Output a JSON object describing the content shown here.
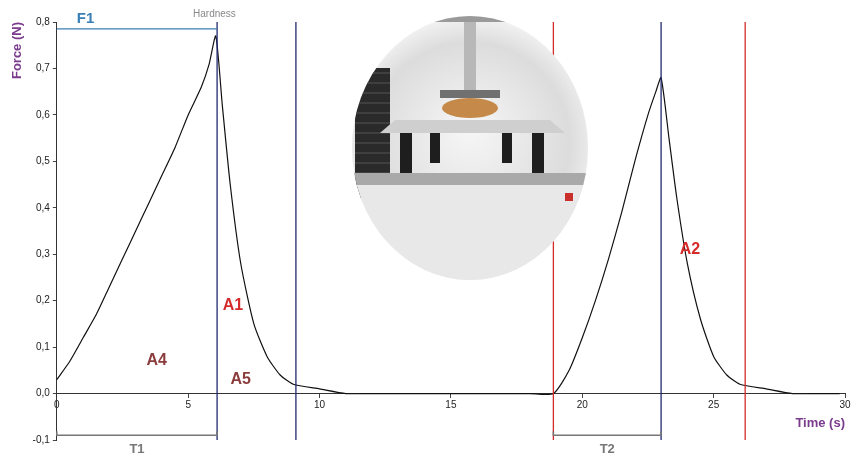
{
  "chart_data": {
    "type": "line",
    "x_label": "Time (s)",
    "y_label": "Force (N)",
    "xlim": [
      0,
      30
    ],
    "xticks": [
      0,
      5,
      10,
      15,
      20,
      25,
      30
    ],
    "ylim": [
      -0.1,
      0.8
    ],
    "yticks": [
      {
        "value": -0.1,
        "label": "-0,1"
      },
      {
        "value": 0,
        "label": "0,0"
      },
      {
        "value": 0.1,
        "label": "0,1"
      },
      {
        "value": 0.2,
        "label": "0,2"
      },
      {
        "value": 0.3,
        "label": "0,3"
      },
      {
        "value": 0.4,
        "label": "0,4"
      },
      {
        "value": 0.5,
        "label": "0,5"
      },
      {
        "value": 0.6,
        "label": "0,6"
      },
      {
        "value": 0.7,
        "label": "0,7"
      },
      {
        "value": 0.8,
        "label": "0,8"
      }
    ],
    "grid": false,
    "color": "#111111",
    "x": [
      0,
      0.5,
      1,
      1.5,
      2,
      2.5,
      3,
      3.5,
      4,
      4.5,
      5,
      5.5,
      5.8,
      6.05,
      6.3,
      6.6,
      7,
      7.5,
      8,
      8.5,
      9,
      10,
      11,
      12,
      13,
      14,
      15,
      16,
      17,
      18,
      18.9,
      19.5,
      20,
      20.5,
      21,
      21.5,
      22,
      22.5,
      22.8,
      23,
      23.3,
      23.6,
      24,
      24.5,
      25,
      25.5,
      26,
      27,
      28,
      29,
      29.8
    ],
    "values": [
      0.03,
      0.07,
      0.12,
      0.17,
      0.23,
      0.29,
      0.35,
      0.41,
      0.47,
      0.53,
      0.6,
      0.66,
      0.71,
      0.77,
      0.62,
      0.45,
      0.28,
      0.15,
      0.08,
      0.04,
      0.02,
      0.01,
      0,
      0,
      0,
      0,
      0,
      0,
      0,
      0,
      0,
      0.05,
      0.12,
      0.2,
      0.29,
      0.39,
      0.5,
      0.6,
      0.65,
      0.68,
      0.55,
      0.42,
      0.28,
      0.16,
      0.08,
      0.04,
      0.02,
      0.01,
      0,
      0,
      0
    ],
    "vlines": [
      {
        "x": 6.1,
        "color": "#1f2a6e"
      },
      {
        "x": 9.1,
        "color": "#1f2a6e"
      },
      {
        "x": 18.9,
        "color": "#d42b2b"
      },
      {
        "x": 23.0,
        "color": "#1f2a6e"
      },
      {
        "x": 26.2,
        "color": "#d42b2b"
      }
    ],
    "hlines": [
      {
        "label": "F1",
        "y": 0.785,
        "start": 0,
        "end": 6.1,
        "color": "#3a7fb5"
      }
    ],
    "annotations": [
      {
        "text": "Hardness",
        "x": 6.0,
        "y": 0.8,
        "color": "#888888"
      },
      {
        "text": "A1",
        "x": 6.7,
        "y": 0.19,
        "color": "#d42b2b"
      },
      {
        "text": "A2",
        "x": 24.1,
        "y": 0.31,
        "color": "#d42b2b"
      },
      {
        "text": "A4",
        "x": 3.8,
        "y": 0.07,
        "color": "#8b3b3b"
      },
      {
        "text": "A5",
        "x": 7.0,
        "y": 0.03,
        "color": "#8b3b3b"
      }
    ],
    "spans": [
      {
        "label": "T1",
        "start": 0,
        "end": 6.1,
        "y": -0.09,
        "color": "#777777"
      },
      {
        "label": "T2",
        "start": 18.9,
        "end": 23.0,
        "y": -0.09,
        "color": "#777777"
      }
    ]
  }
}
